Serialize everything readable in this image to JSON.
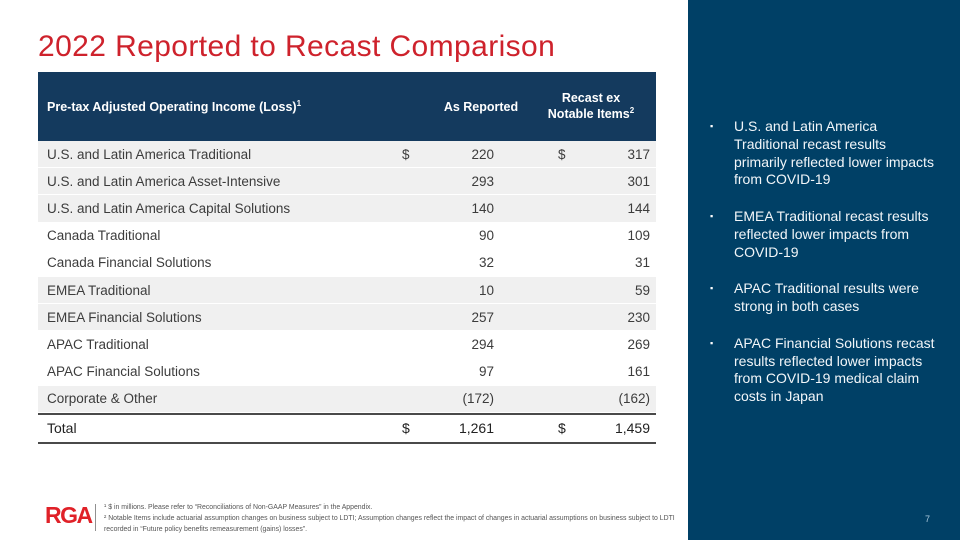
{
  "title": "2022 Reported to Recast Comparison",
  "table": {
    "header": {
      "col1": "Pre-tax Adjusted Operating Income (Loss)",
      "col1_sup": "1",
      "col2": "As Reported",
      "col3_line1": "Recast ex",
      "col3_line2": "Notable Items",
      "col3_sup": "2"
    },
    "rows": [
      {
        "label": "U.S. and Latin America Traditional",
        "cur1": "$",
        "reported": "220",
        "cur2": "$",
        "recast": "317"
      },
      {
        "label": "U.S. and Latin America Asset-Intensive",
        "reported": "293",
        "recast": "301"
      },
      {
        "label": "U.S. and Latin America Capital Solutions",
        "reported": "140",
        "recast": "144"
      },
      {
        "label": "Canada Traditional",
        "reported": "90",
        "recast": "109"
      },
      {
        "label": "Canada Financial Solutions",
        "reported": "32",
        "recast": "31"
      },
      {
        "label": "EMEA Traditional",
        "reported": "10",
        "recast": "59"
      },
      {
        "label": "EMEA Financial Solutions",
        "reported": "257",
        "recast": "230"
      },
      {
        "label": "APAC Traditional",
        "reported": "294",
        "recast": "269"
      },
      {
        "label": "APAC Financial Solutions",
        "reported": "97",
        "recast": "161"
      },
      {
        "label": "Corporate & Other",
        "reported": "(172)",
        "recast": "(162)"
      }
    ],
    "total": {
      "label": "Total",
      "cur1": "$",
      "reported": "1,261",
      "cur2": "$",
      "recast": "1,459"
    }
  },
  "sidebar": {
    "bullets": [
      {
        "marker": "▪",
        "text": "U.S. and Latin America Traditional recast results primarily reflected lower impacts from COVID-19"
      },
      {
        "marker": "▪",
        "text": "EMEA Traditional recast results reflected lower impacts from COVID-19"
      },
      {
        "marker": "▪",
        "text": "APAC Traditional results were strong in both cases"
      },
      {
        "marker": "▪",
        "text": "APAC Financial Solutions recast results reflected lower impacts from COVID-19 medical claim costs in Japan"
      }
    ],
    "page_number": "7"
  },
  "footer": {
    "logo_text": "RGA",
    "footnote1": "¹ $ in millions. Please refer to “Reconciliations of Non-GAAP Measures” in the Appendix.",
    "footnote2": "² Notable Items include actuarial assumption changes on business subject to LDTI; Assumption changes reflect the impact of changes in actuarial assumptions on business subject to LDTI recorded in “Future policy benefits remeasurement (gains) losses”."
  },
  "colors": {
    "title_red": "#ce222c",
    "logo_red": "#e02128",
    "table_header_navy": "#143a5e",
    "sidebar_navy": "#004066",
    "row_shade_gray": "#f0f0f0"
  }
}
